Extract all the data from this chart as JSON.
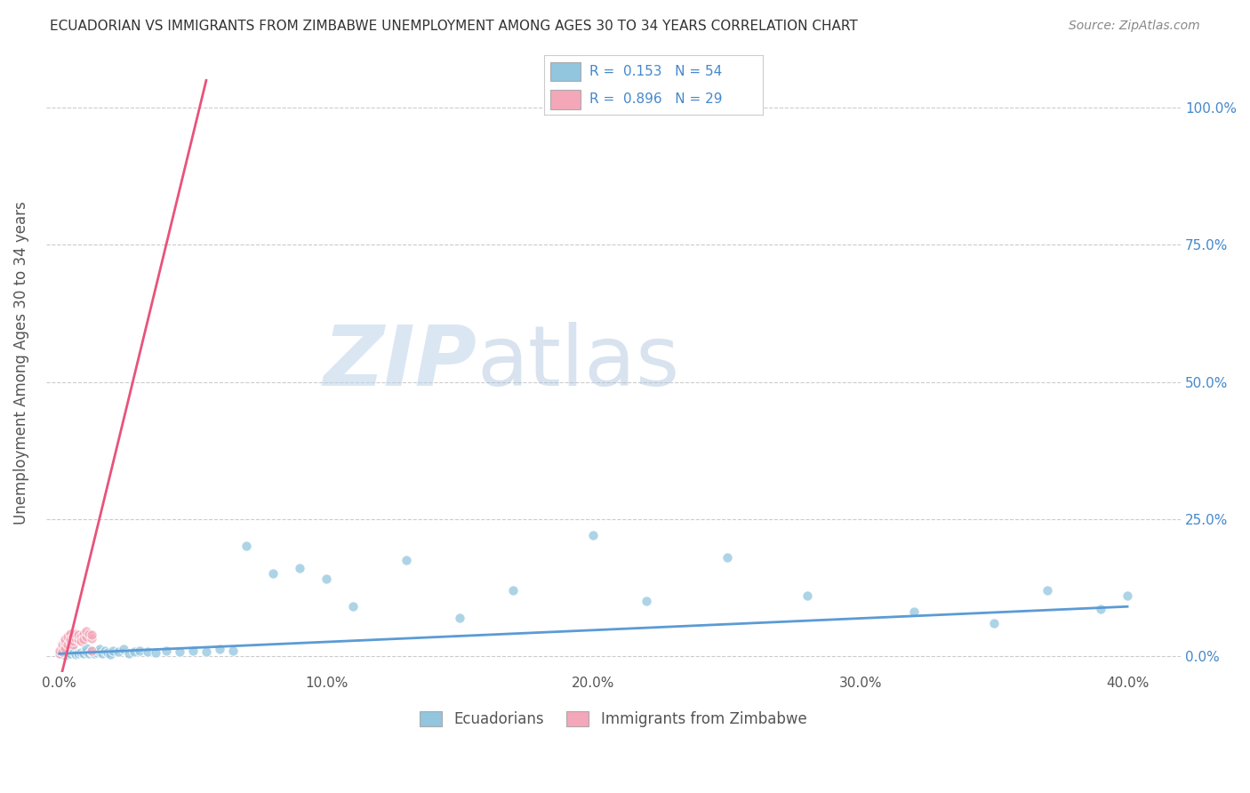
{
  "title": "ECUADORIAN VS IMMIGRANTS FROM ZIMBABWE UNEMPLOYMENT AMONG AGES 30 TO 34 YEARS CORRELATION CHART",
  "source": "Source: ZipAtlas.com",
  "ylabel": "Unemployment Among Ages 30 to 34 years",
  "xlabel_ticks": [
    "0.0%",
    "10.0%",
    "20.0%",
    "30.0%",
    "40.0%"
  ],
  "xlabel_vals": [
    0.0,
    0.1,
    0.2,
    0.3,
    0.4
  ],
  "ylabel_ticks": [
    "0.0%",
    "25.0%",
    "50.0%",
    "75.0%",
    "100.0%"
  ],
  "ylabel_vals": [
    0.0,
    0.25,
    0.5,
    0.75,
    1.0
  ],
  "xlim": [
    -0.005,
    0.42
  ],
  "ylim": [
    -0.03,
    1.1
  ],
  "legend_labels": [
    "Ecuadorians",
    "Immigrants from Zimbabwe"
  ],
  "legend_R": [
    0.153,
    0.896
  ],
  "legend_N": [
    54,
    29
  ],
  "blue_color": "#92c5de",
  "pink_color": "#f4a7b9",
  "blue_line_color": "#5b9bd5",
  "pink_line_color": "#e8537a",
  "watermark_zip": "ZIP",
  "watermark_atlas": "atlas",
  "background_color": "#ffffff",
  "grid_color": "#cccccc",
  "blue_scatter_x": [
    0.0,
    0.002,
    0.003,
    0.004,
    0.005,
    0.005,
    0.006,
    0.007,
    0.008,
    0.009,
    0.01,
    0.01,
    0.011,
    0.012,
    0.012,
    0.013,
    0.014,
    0.015,
    0.015,
    0.016,
    0.017,
    0.018,
    0.019,
    0.02,
    0.022,
    0.024,
    0.026,
    0.028,
    0.03,
    0.033,
    0.036,
    0.04,
    0.045,
    0.05,
    0.055,
    0.06,
    0.065,
    0.07,
    0.08,
    0.09,
    0.1,
    0.11,
    0.13,
    0.15,
    0.17,
    0.2,
    0.22,
    0.25,
    0.28,
    0.32,
    0.35,
    0.37,
    0.39,
    0.4
  ],
  "blue_scatter_y": [
    0.005,
    0.002,
    0.003,
    0.004,
    0.008,
    0.012,
    0.003,
    0.005,
    0.006,
    0.004,
    0.008,
    0.015,
    0.005,
    0.007,
    0.01,
    0.004,
    0.006,
    0.008,
    0.012,
    0.005,
    0.009,
    0.006,
    0.003,
    0.01,
    0.008,
    0.012,
    0.005,
    0.007,
    0.01,
    0.008,
    0.006,
    0.009,
    0.007,
    0.01,
    0.008,
    0.012,
    0.01,
    0.2,
    0.15,
    0.16,
    0.14,
    0.09,
    0.175,
    0.07,
    0.12,
    0.22,
    0.1,
    0.18,
    0.11,
    0.08,
    0.06,
    0.12,
    0.085,
    0.11
  ],
  "pink_scatter_x": [
    0.0,
    0.0,
    0.001,
    0.001,
    0.002,
    0.002,
    0.002,
    0.003,
    0.003,
    0.004,
    0.004,
    0.004,
    0.005,
    0.005,
    0.005,
    0.006,
    0.006,
    0.007,
    0.007,
    0.008,
    0.008,
    0.009,
    0.009,
    0.01,
    0.01,
    0.011,
    0.012,
    0.012,
    0.012
  ],
  "pink_scatter_y": [
    0.005,
    0.01,
    0.02,
    0.008,
    0.015,
    0.025,
    0.03,
    0.02,
    0.035,
    0.025,
    0.04,
    0.03,
    0.02,
    0.035,
    0.028,
    0.032,
    0.04,
    0.03,
    0.038,
    0.035,
    0.028,
    0.04,
    0.03,
    0.035,
    0.045,
    0.04,
    0.032,
    0.038,
    0.01
  ],
  "pink_line_x0": 0.0,
  "pink_line_y0": -0.05,
  "pink_line_x1": 0.055,
  "pink_line_y1": 1.05,
  "blue_line_x0": 0.0,
  "blue_line_y0": 0.004,
  "blue_line_x1": 0.4,
  "blue_line_y1": 0.09
}
